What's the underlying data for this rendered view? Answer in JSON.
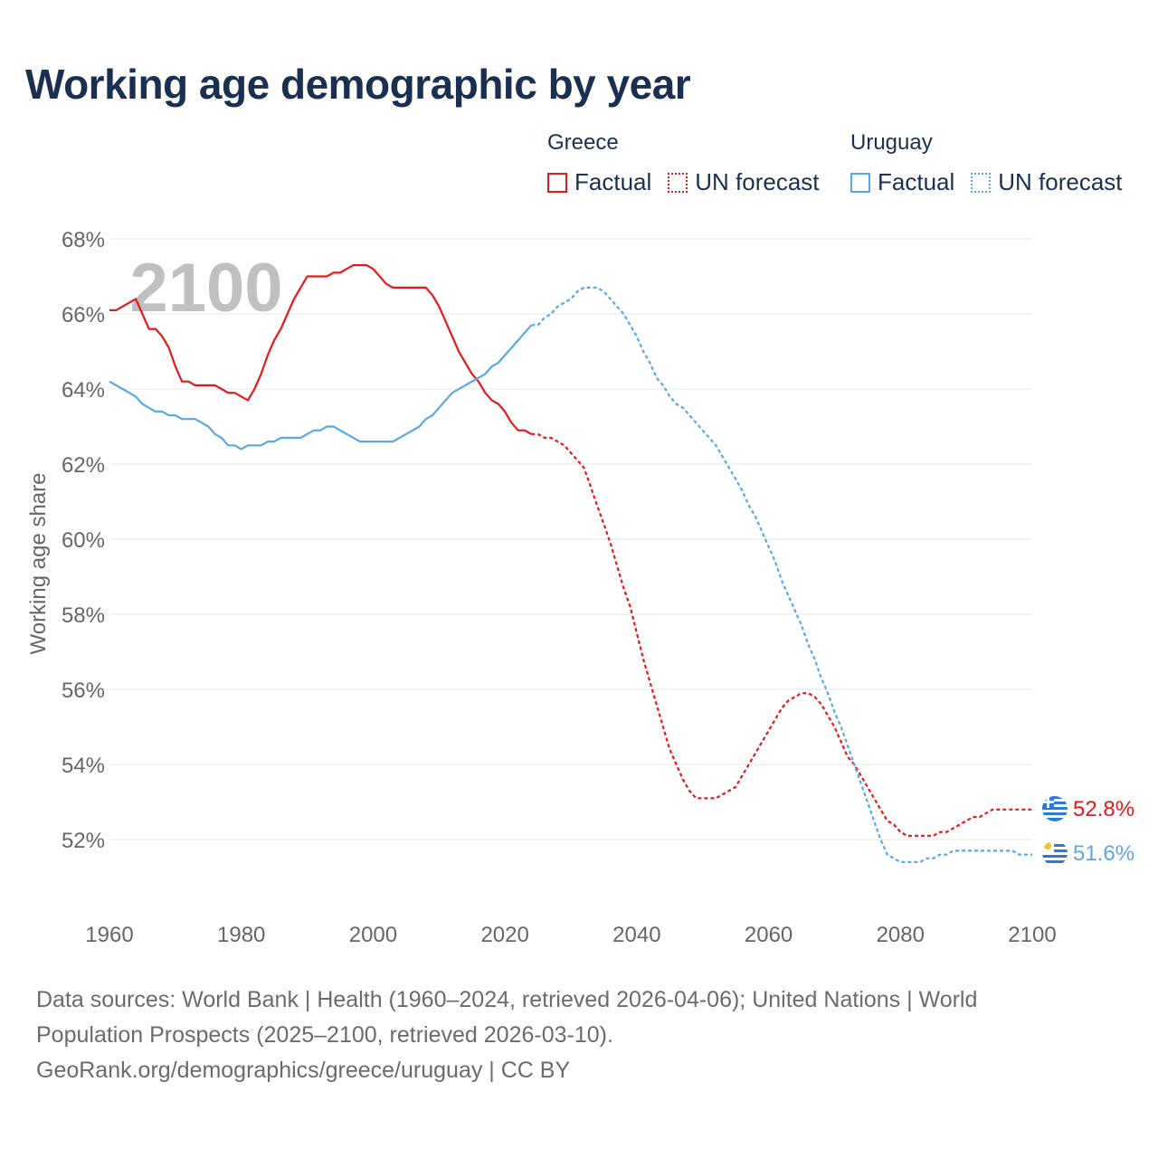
{
  "title": "Working age demographic by year",
  "legend": {
    "groups": [
      {
        "name": "Greece",
        "color": "#e31a1c",
        "items": [
          "Factual",
          "UN forecast"
        ]
      },
      {
        "name": "Uruguay",
        "color": "#5aa7e6",
        "items": [
          "Factual",
          "UN forecast"
        ]
      }
    ]
  },
  "sources": {
    "line1": "Data sources: World Bank | Health (1960–2024, retrieved 2026-04-06); United Nations | World Population Prospects (2025–2100, retrieved 2026-03-10).",
    "line2": "GeoRank.org/demographics/greece/uruguay | CC BY"
  },
  "chart_data": {
    "type": "line",
    "title": "Working age demographic by year",
    "xlabel": "",
    "ylabel": "Working age share",
    "xlim": [
      1960,
      2100
    ],
    "ylim": [
      50.6,
      68
    ],
    "x_ticks": [
      1960,
      1980,
      2000,
      2020,
      2040,
      2060,
      2080,
      2100
    ],
    "x_tick_labels": [
      "1960",
      "1980",
      "2000",
      "2020",
      "2040",
      "2060",
      "2080",
      "2100"
    ],
    "y_ticks": [
      52,
      54,
      56,
      58,
      60,
      62,
      64,
      66,
      68
    ],
    "y_tick_labels": [
      "52%",
      "54%",
      "56%",
      "58%",
      "60%",
      "62%",
      "64%",
      "66%",
      "68%"
    ],
    "grid": true,
    "watermark_year": "2100",
    "factual_end_year": 2024,
    "series": [
      {
        "name": "Greece",
        "color": "#e31a1c",
        "end_label": "52.8%",
        "points": [
          [
            1960,
            66.1
          ],
          [
            1961,
            66.1
          ],
          [
            1962,
            66.2
          ],
          [
            1963,
            66.3
          ],
          [
            1964,
            66.4
          ],
          [
            1965,
            66.0
          ],
          [
            1966,
            65.6
          ],
          [
            1967,
            65.6
          ],
          [
            1968,
            65.4
          ],
          [
            1969,
            65.1
          ],
          [
            1970,
            64.6
          ],
          [
            1971,
            64.2
          ],
          [
            1972,
            64.2
          ],
          [
            1973,
            64.1
          ],
          [
            1974,
            64.1
          ],
          [
            1975,
            64.1
          ],
          [
            1976,
            64.1
          ],
          [
            1977,
            64.0
          ],
          [
            1978,
            63.9
          ],
          [
            1979,
            63.9
          ],
          [
            1980,
            63.8
          ],
          [
            1981,
            63.7
          ],
          [
            1982,
            64.0
          ],
          [
            1983,
            64.4
          ],
          [
            1984,
            64.9
          ],
          [
            1985,
            65.3
          ],
          [
            1986,
            65.6
          ],
          [
            1987,
            66.0
          ],
          [
            1988,
            66.4
          ],
          [
            1989,
            66.7
          ],
          [
            1990,
            67.0
          ],
          [
            1991,
            67.0
          ],
          [
            1992,
            67.0
          ],
          [
            1993,
            67.0
          ],
          [
            1994,
            67.1
          ],
          [
            1995,
            67.1
          ],
          [
            1996,
            67.2
          ],
          [
            1997,
            67.3
          ],
          [
            1998,
            67.3
          ],
          [
            1999,
            67.3
          ],
          [
            2000,
            67.2
          ],
          [
            2001,
            67.0
          ],
          [
            2002,
            66.8
          ],
          [
            2003,
            66.7
          ],
          [
            2004,
            66.7
          ],
          [
            2005,
            66.7
          ],
          [
            2006,
            66.7
          ],
          [
            2007,
            66.7
          ],
          [
            2008,
            66.7
          ],
          [
            2009,
            66.5
          ],
          [
            2010,
            66.2
          ],
          [
            2011,
            65.8
          ],
          [
            2012,
            65.4
          ],
          [
            2013,
            65.0
          ],
          [
            2014,
            64.7
          ],
          [
            2015,
            64.4
          ],
          [
            2016,
            64.2
          ],
          [
            2017,
            63.9
          ],
          [
            2018,
            63.7
          ],
          [
            2019,
            63.6
          ],
          [
            2020,
            63.4
          ],
          [
            2021,
            63.1
          ],
          [
            2022,
            62.9
          ],
          [
            2023,
            62.9
          ],
          [
            2024,
            62.8
          ],
          [
            2025,
            62.8
          ],
          [
            2026,
            62.7
          ],
          [
            2027,
            62.7
          ],
          [
            2028,
            62.6
          ],
          [
            2029,
            62.5
          ],
          [
            2030,
            62.3
          ],
          [
            2031,
            62.1
          ],
          [
            2032,
            61.9
          ],
          [
            2033,
            61.4
          ],
          [
            2034,
            60.9
          ],
          [
            2035,
            60.4
          ],
          [
            2036,
            59.9
          ],
          [
            2037,
            59.3
          ],
          [
            2038,
            58.7
          ],
          [
            2039,
            58.2
          ],
          [
            2040,
            57.5
          ],
          [
            2041,
            56.8
          ],
          [
            2042,
            56.2
          ],
          [
            2043,
            55.6
          ],
          [
            2044,
            55.0
          ],
          [
            2045,
            54.4
          ],
          [
            2046,
            54.0
          ],
          [
            2047,
            53.6
          ],
          [
            2048,
            53.3
          ],
          [
            2049,
            53.1
          ],
          [
            2050,
            53.1
          ],
          [
            2051,
            53.1
          ],
          [
            2052,
            53.1
          ],
          [
            2053,
            53.2
          ],
          [
            2054,
            53.3
          ],
          [
            2055,
            53.4
          ],
          [
            2056,
            53.7
          ],
          [
            2057,
            54.0
          ],
          [
            2058,
            54.3
          ],
          [
            2059,
            54.6
          ],
          [
            2060,
            54.9
          ],
          [
            2061,
            55.2
          ],
          [
            2062,
            55.5
          ],
          [
            2063,
            55.7
          ],
          [
            2064,
            55.8
          ],
          [
            2065,
            55.9
          ],
          [
            2066,
            55.9
          ],
          [
            2067,
            55.8
          ],
          [
            2068,
            55.6
          ],
          [
            2069,
            55.3
          ],
          [
            2070,
            55.0
          ],
          [
            2071,
            54.6
          ],
          [
            2072,
            54.2
          ],
          [
            2073,
            54.0
          ],
          [
            2074,
            53.7
          ],
          [
            2075,
            53.4
          ],
          [
            2076,
            53.1
          ],
          [
            2077,
            52.8
          ],
          [
            2078,
            52.5
          ],
          [
            2079,
            52.4
          ],
          [
            2080,
            52.2
          ],
          [
            2081,
            52.1
          ],
          [
            2082,
            52.1
          ],
          [
            2083,
            52.1
          ],
          [
            2084,
            52.1
          ],
          [
            2085,
            52.1
          ],
          [
            2086,
            52.2
          ],
          [
            2087,
            52.2
          ],
          [
            2088,
            52.3
          ],
          [
            2089,
            52.4
          ],
          [
            2090,
            52.5
          ],
          [
            2091,
            52.6
          ],
          [
            2092,
            52.6
          ],
          [
            2093,
            52.7
          ],
          [
            2094,
            52.8
          ],
          [
            2095,
            52.8
          ],
          [
            2096,
            52.8
          ],
          [
            2097,
            52.8
          ],
          [
            2098,
            52.8
          ],
          [
            2099,
            52.8
          ],
          [
            2100,
            52.8
          ]
        ]
      },
      {
        "name": "Uruguay",
        "color": "#5aa7e6",
        "end_label": "51.6%",
        "points": [
          [
            1960,
            64.2
          ],
          [
            1961,
            64.1
          ],
          [
            1962,
            64.0
          ],
          [
            1963,
            63.9
          ],
          [
            1964,
            63.8
          ],
          [
            1965,
            63.6
          ],
          [
            1966,
            63.5
          ],
          [
            1967,
            63.4
          ],
          [
            1968,
            63.4
          ],
          [
            1969,
            63.3
          ],
          [
            1970,
            63.3
          ],
          [
            1971,
            63.2
          ],
          [
            1972,
            63.2
          ],
          [
            1973,
            63.2
          ],
          [
            1974,
            63.1
          ],
          [
            1975,
            63.0
          ],
          [
            1976,
            62.8
          ],
          [
            1977,
            62.7
          ],
          [
            1978,
            62.5
          ],
          [
            1979,
            62.5
          ],
          [
            1980,
            62.4
          ],
          [
            1981,
            62.5
          ],
          [
            1982,
            62.5
          ],
          [
            1983,
            62.5
          ],
          [
            1984,
            62.6
          ],
          [
            1985,
            62.6
          ],
          [
            1986,
            62.7
          ],
          [
            1987,
            62.7
          ],
          [
            1988,
            62.7
          ],
          [
            1989,
            62.7
          ],
          [
            1990,
            62.8
          ],
          [
            1991,
            62.9
          ],
          [
            1992,
            62.9
          ],
          [
            1993,
            63.0
          ],
          [
            1994,
            63.0
          ],
          [
            1995,
            62.9
          ],
          [
            1996,
            62.8
          ],
          [
            1997,
            62.7
          ],
          [
            1998,
            62.6
          ],
          [
            1999,
            62.6
          ],
          [
            2000,
            62.6
          ],
          [
            2001,
            62.6
          ],
          [
            2002,
            62.6
          ],
          [
            2003,
            62.6
          ],
          [
            2004,
            62.7
          ],
          [
            2005,
            62.8
          ],
          [
            2006,
            62.9
          ],
          [
            2007,
            63.0
          ],
          [
            2008,
            63.2
          ],
          [
            2009,
            63.3
          ],
          [
            2010,
            63.5
          ],
          [
            2011,
            63.7
          ],
          [
            2012,
            63.9
          ],
          [
            2013,
            64.0
          ],
          [
            2014,
            64.1
          ],
          [
            2015,
            64.2
          ],
          [
            2016,
            64.3
          ],
          [
            2017,
            64.4
          ],
          [
            2018,
            64.6
          ],
          [
            2019,
            64.7
          ],
          [
            2020,
            64.9
          ],
          [
            2021,
            65.1
          ],
          [
            2022,
            65.3
          ],
          [
            2023,
            65.5
          ],
          [
            2024,
            65.7
          ],
          [
            2025,
            65.7
          ],
          [
            2026,
            65.9
          ],
          [
            2027,
            66.0
          ],
          [
            2028,
            66.2
          ],
          [
            2029,
            66.3
          ],
          [
            2030,
            66.4
          ],
          [
            2031,
            66.6
          ],
          [
            2032,
            66.7
          ],
          [
            2033,
            66.7
          ],
          [
            2034,
            66.7
          ],
          [
            2035,
            66.6
          ],
          [
            2036,
            66.4
          ],
          [
            2037,
            66.2
          ],
          [
            2038,
            66.0
          ],
          [
            2039,
            65.7
          ],
          [
            2040,
            65.4
          ],
          [
            2041,
            65.0
          ],
          [
            2042,
            64.7
          ],
          [
            2043,
            64.3
          ],
          [
            2044,
            64.1
          ],
          [
            2045,
            63.8
          ],
          [
            2046,
            63.6
          ],
          [
            2047,
            63.5
          ],
          [
            2048,
            63.3
          ],
          [
            2049,
            63.1
          ],
          [
            2050,
            62.9
          ],
          [
            2051,
            62.7
          ],
          [
            2052,
            62.5
          ],
          [
            2053,
            62.2
          ],
          [
            2054,
            61.9
          ],
          [
            2055,
            61.6
          ],
          [
            2056,
            61.3
          ],
          [
            2057,
            60.9
          ],
          [
            2058,
            60.6
          ],
          [
            2059,
            60.2
          ],
          [
            2060,
            59.8
          ],
          [
            2061,
            59.4
          ],
          [
            2062,
            58.9
          ],
          [
            2063,
            58.5
          ],
          [
            2064,
            58.1
          ],
          [
            2065,
            57.7
          ],
          [
            2066,
            57.2
          ],
          [
            2067,
            56.8
          ],
          [
            2068,
            56.3
          ],
          [
            2069,
            55.9
          ],
          [
            2070,
            55.4
          ],
          [
            2071,
            55.0
          ],
          [
            2072,
            54.5
          ],
          [
            2073,
            54.0
          ],
          [
            2074,
            53.5
          ],
          [
            2075,
            53.0
          ],
          [
            2076,
            52.5
          ],
          [
            2077,
            52.0
          ],
          [
            2078,
            51.6
          ],
          [
            2079,
            51.5
          ],
          [
            2080,
            51.4
          ],
          [
            2081,
            51.4
          ],
          [
            2082,
            51.4
          ],
          [
            2083,
            51.4
          ],
          [
            2084,
            51.5
          ],
          [
            2085,
            51.5
          ],
          [
            2086,
            51.6
          ],
          [
            2087,
            51.6
          ],
          [
            2088,
            51.7
          ],
          [
            2089,
            51.7
          ],
          [
            2090,
            51.7
          ],
          [
            2091,
            51.7
          ],
          [
            2092,
            51.7
          ],
          [
            2093,
            51.7
          ],
          [
            2094,
            51.7
          ],
          [
            2095,
            51.7
          ],
          [
            2096,
            51.7
          ],
          [
            2097,
            51.7
          ],
          [
            2098,
            51.6
          ],
          [
            2099,
            51.6
          ],
          [
            2100,
            51.6
          ]
        ]
      }
    ]
  }
}
